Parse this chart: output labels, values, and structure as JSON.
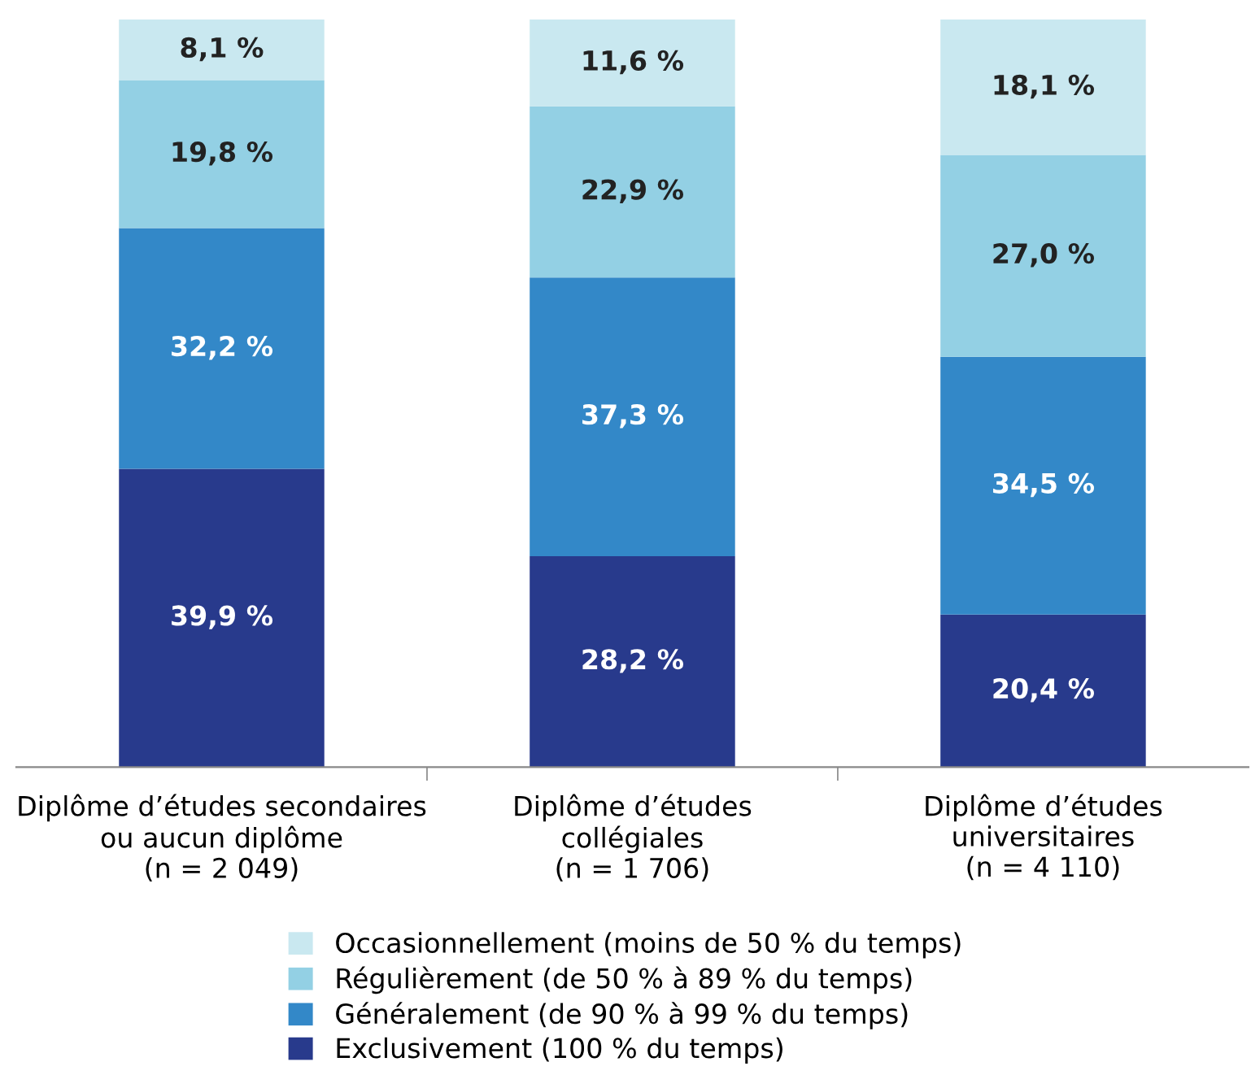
{
  "chart_data": {
    "type": "bar",
    "stacked": true,
    "categories": [
      "Diplôme d’études secondaires\nou aucun diplôme\n(n = 2 049)",
      "Diplôme d’études\ncollégiales\n(n = 1 706)",
      "Diplôme d’études\nuniversitaires\n(n = 4 110)"
    ],
    "series": [
      {
        "name": "Exclusivement (100 % du temps)",
        "color": "#283a8c",
        "values": [
          39.9,
          28.2,
          20.4
        ],
        "value_labels": [
          "39,9 %",
          "28,2 %",
          "20,4 %"
        ]
      },
      {
        "name": "Généralement (de 90 % à 99 % du temps)",
        "color": "#3388c8",
        "values": [
          32.2,
          37.3,
          34.5
        ],
        "value_labels": [
          "32,2 %",
          "37,3 %",
          "34,5 %"
        ]
      },
      {
        "name": "Régulièrement (de 50 % à 89 % du temps)",
        "color": "#93d0e4",
        "values": [
          19.8,
          22.9,
          27.0
        ],
        "value_labels": [
          "19,8 %",
          "22,9 %",
          "27,0 %"
        ]
      },
      {
        "name": "Occasionnellement (moins de 50 % du temps)",
        "color": "#c9e8f0",
        "values": [
          8.1,
          11.6,
          18.1
        ],
        "value_labels": [
          "8,1 %",
          "11,6 %",
          "18,1 %"
        ]
      }
    ],
    "legend": "bottom",
    "grid": false
  }
}
